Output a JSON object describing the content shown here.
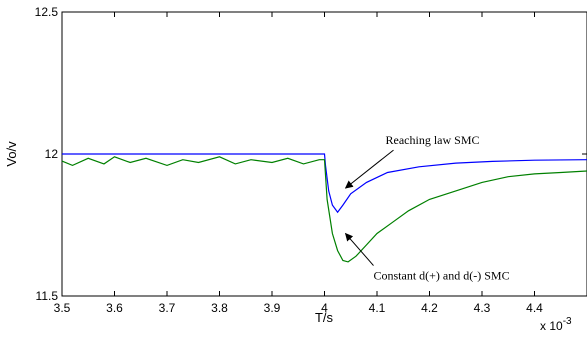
{
  "chart_data": {
    "type": "line",
    "xlabel": "T/s",
    "ylabel": "Vo/v",
    "xlim": [
      3.5,
      4.5
    ],
    "ylim": [
      11.5,
      12.5
    ],
    "x_multiplier": "x 10",
    "x_multiplier_exp": "-3",
    "x_ticks": [
      3.5,
      3.6,
      3.7,
      3.8,
      3.9,
      4,
      4.1,
      4.2,
      4.3,
      4.4
    ],
    "x_tick_labels": [
      "3.5",
      "3.6",
      "3.7",
      "3.8",
      "3.9",
      "4",
      "4.1",
      "4.2",
      "4.3",
      "4.4"
    ],
    "y_ticks": [
      11.5,
      12,
      12.5
    ],
    "y_tick_labels": [
      "11.5",
      "12",
      "12.5"
    ],
    "grid": false,
    "series": [
      {
        "name": "Reaching law SMC",
        "color": "#0000ff",
        "x": [
          3.5,
          3.6,
          3.7,
          3.8,
          3.9,
          4.0,
          4.002,
          4.008,
          4.015,
          4.025,
          4.035,
          4.05,
          4.08,
          4.12,
          4.18,
          4.25,
          4.32,
          4.4,
          4.5
        ],
        "y": [
          12.0,
          12.0,
          12.0,
          12.0,
          12.0,
          12.0,
          11.96,
          11.87,
          11.82,
          11.795,
          11.82,
          11.86,
          11.9,
          11.935,
          11.955,
          11.968,
          11.974,
          11.978,
          11.98
        ]
      },
      {
        "name": "Constant d(+) and d(-) SMC",
        "color": "#008000",
        "x": [
          3.5,
          3.52,
          3.55,
          3.58,
          3.6,
          3.63,
          3.66,
          3.7,
          3.73,
          3.76,
          3.8,
          3.83,
          3.86,
          3.9,
          3.93,
          3.96,
          3.99,
          4.0,
          4.005,
          4.015,
          4.025,
          4.035,
          4.045,
          4.06,
          4.08,
          4.1,
          4.13,
          4.16,
          4.2,
          4.25,
          4.3,
          4.35,
          4.4,
          4.45,
          4.5
        ],
        "y": [
          11.975,
          11.96,
          11.985,
          11.965,
          11.99,
          11.97,
          11.985,
          11.96,
          11.98,
          11.97,
          11.99,
          11.965,
          11.98,
          11.97,
          11.985,
          11.965,
          11.98,
          11.98,
          11.84,
          11.72,
          11.66,
          11.625,
          11.62,
          11.64,
          11.68,
          11.72,
          11.76,
          11.8,
          11.84,
          11.87,
          11.9,
          11.92,
          11.93,
          11.935,
          11.94
        ]
      }
    ],
    "annotations": [
      {
        "text": "Reaching law SMC",
        "series": 0,
        "point_x": 4.04,
        "point_y": 11.88
      },
      {
        "text": "Constant d(+) and d(-) SMC",
        "series": 1,
        "point_x": 4.04,
        "point_y": 11.72
      }
    ]
  }
}
